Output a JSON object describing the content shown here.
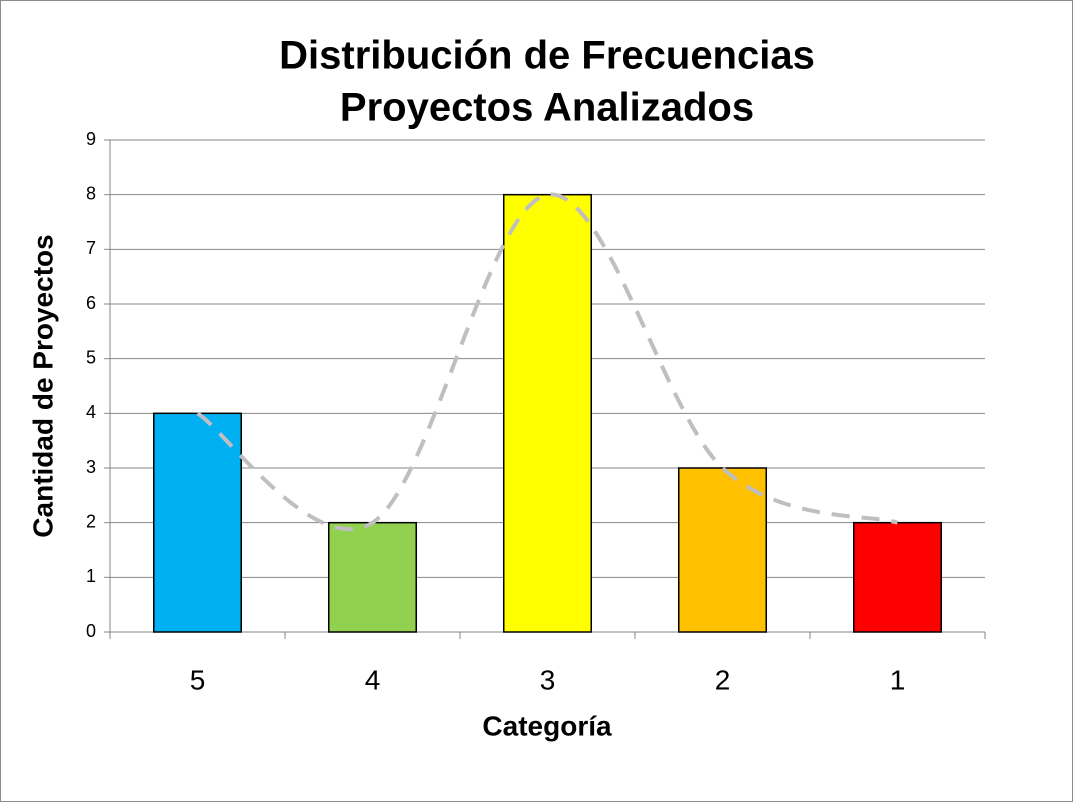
{
  "chart_data": {
    "type": "bar",
    "title": [
      "Distribución de Frecuencias",
      "Proyectos Analizados"
    ],
    "xlabel": "Categoría",
    "ylabel": "Cantidad de Proyectos",
    "categories": [
      "5",
      "4",
      "3",
      "2",
      "1"
    ],
    "values": [
      4,
      2,
      8,
      3,
      2
    ],
    "colors": [
      "#00b0f0",
      "#92d050",
      "#ffff00",
      "#ffc000",
      "#ff0000"
    ],
    "ylim": [
      0,
      9
    ],
    "yticks": [
      0,
      1,
      2,
      3,
      4,
      5,
      6,
      7,
      8,
      9
    ],
    "grid": true,
    "trendline": {
      "color": "#bfbfbf",
      "dashed": true,
      "smooth": true
    }
  }
}
